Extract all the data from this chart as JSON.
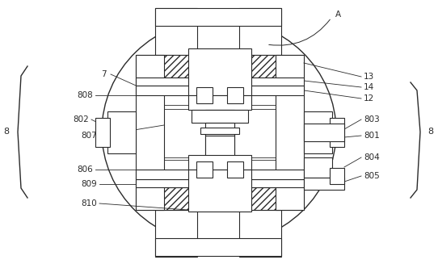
{
  "background": "#ffffff",
  "line_color": "#2a2a2a",
  "fig_width": 5.42,
  "fig_height": 3.27,
  "dpi": 100
}
